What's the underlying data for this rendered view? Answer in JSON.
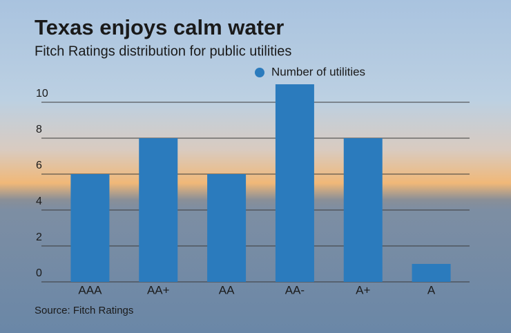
{
  "chart_data": {
    "type": "bar",
    "title": "Texas enjoys calm water",
    "subtitle": "Fitch Ratings distribution for public utilities",
    "categories": [
      "AAA",
      "AA+",
      "AA",
      "AA-",
      "A+",
      "A"
    ],
    "series": [
      {
        "name": "Number of utilities",
        "color": "#2b7bbd",
        "values": [
          6,
          8,
          6,
          11,
          8,
          1
        ]
      }
    ],
    "ylim": [
      0,
      11
    ],
    "yticks": [
      0,
      2,
      4,
      6,
      8,
      10
    ],
    "grid": true,
    "legend": "top",
    "source": "Source: Fitch Ratings"
  }
}
